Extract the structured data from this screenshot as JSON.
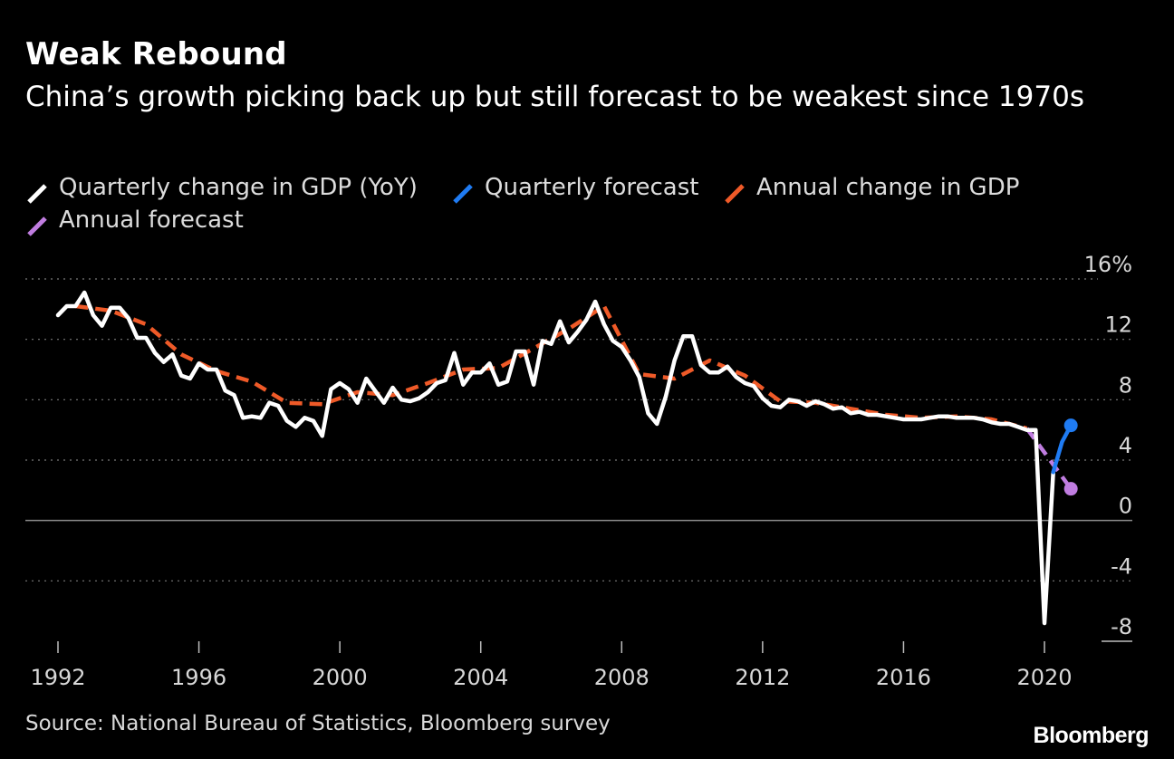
{
  "header": {
    "title": "Weak Rebound",
    "subtitle": "China’s growth picking back up but still forecast to be weakest since 1970s"
  },
  "legend": {
    "items": [
      {
        "label": "Quarterly change in GDP (YoY)",
        "color": "#ffffff"
      },
      {
        "label": "Quarterly forecast",
        "color": "#1f7bf2"
      },
      {
        "label": "Annual change in GDP",
        "color": "#ef5a28"
      },
      {
        "label": "Annual forecast",
        "color": "#c07de0"
      }
    ]
  },
  "footer": {
    "source": "Source: National Bureau of Statistics, Bloomberg survey",
    "brand": "Bloomberg"
  },
  "chart_data": {
    "type": "line",
    "title": "Weak Rebound",
    "subtitle": "China’s growth picking back up but still forecast to be weakest since 1970s",
    "xlabel": "",
    "ylabel": "",
    "xlim": [
      1991.9,
      2021.0
    ],
    "ylim": [
      -8,
      16
    ],
    "y_ticks": [
      16,
      12,
      8,
      4,
      0,
      -4,
      -8
    ],
    "y_tick_labels": [
      "16%",
      "12",
      "8",
      "4",
      "0",
      "-4",
      "-8"
    ],
    "x_ticks": [
      1992,
      1996,
      2000,
      2004,
      2008,
      2012,
      2016,
      2020
    ],
    "x_tick_labels": [
      "1992",
      "1996",
      "2000",
      "2004",
      "2008",
      "2012",
      "2016",
      "2020"
    ],
    "grid": true,
    "legend_position": "top-left",
    "series": [
      {
        "name": "Quarterly change in GDP (YoY)",
        "color": "#ffffff",
        "style": "solid",
        "x": [
          1992.0,
          1992.25,
          1992.5,
          1992.75,
          1993.0,
          1993.25,
          1993.5,
          1993.75,
          1994.0,
          1994.25,
          1994.5,
          1994.75,
          1995.0,
          1995.25,
          1995.5,
          1995.75,
          1996.0,
          1996.25,
          1996.5,
          1996.75,
          1997.0,
          1997.25,
          1997.5,
          1997.75,
          1998.0,
          1998.25,
          1998.5,
          1998.75,
          1999.0,
          1999.25,
          1999.5,
          1999.75,
          2000.0,
          2000.25,
          2000.5,
          2000.75,
          2001.0,
          2001.25,
          2001.5,
          2001.75,
          2002.0,
          2002.25,
          2002.5,
          2002.75,
          2003.0,
          2003.25,
          2003.5,
          2003.75,
          2004.0,
          2004.25,
          2004.5,
          2004.75,
          2005.0,
          2005.25,
          2005.5,
          2005.75,
          2006.0,
          2006.25,
          2006.5,
          2006.75,
          2007.0,
          2007.25,
          2007.5,
          2007.75,
          2008.0,
          2008.25,
          2008.5,
          2008.75,
          2009.0,
          2009.25,
          2009.5,
          2009.75,
          2010.0,
          2010.25,
          2010.5,
          2010.75,
          2011.0,
          2011.25,
          2011.5,
          2011.75,
          2012.0,
          2012.25,
          2012.5,
          2012.75,
          2013.0,
          2013.25,
          2013.5,
          2013.75,
          2014.0,
          2014.25,
          2014.5,
          2014.75,
          2015.0,
          2015.25,
          2015.5,
          2015.75,
          2016.0,
          2016.25,
          2016.5,
          2016.75,
          2017.0,
          2017.25,
          2017.5,
          2017.75,
          2018.0,
          2018.25,
          2018.5,
          2018.75,
          2019.0,
          2019.25,
          2019.5,
          2019.75,
          2020.0,
          2020.25
        ],
        "values": [
          13.6,
          14.2,
          14.2,
          15.1,
          13.6,
          12.9,
          14.1,
          14.1,
          13.4,
          12.1,
          12.1,
          11.1,
          10.5,
          11.0,
          9.6,
          9.4,
          10.4,
          10.0,
          10.0,
          8.6,
          8.3,
          6.8,
          6.9,
          6.8,
          7.8,
          7.6,
          6.6,
          6.2,
          6.8,
          6.6,
          5.6,
          8.7,
          9.1,
          8.7,
          7.8,
          9.4,
          8.6,
          7.8,
          8.8,
          8.0,
          7.9,
          8.1,
          8.5,
          9.1,
          9.3,
          11.1,
          9.0,
          9.8,
          9.8,
          10.4,
          9.0,
          9.2,
          11.2,
          11.2,
          9.0,
          11.9,
          11.7,
          13.2,
          11.8,
          12.5,
          13.3,
          14.5,
          13.0,
          11.9,
          11.5,
          10.6,
          9.5,
          7.1,
          6.4,
          8.2,
          10.6,
          12.2,
          12.2,
          10.3,
          9.8,
          9.8,
          10.2,
          9.5,
          9.1,
          8.9,
          8.1,
          7.6,
          7.5,
          8.0,
          7.9,
          7.6,
          7.9,
          7.7,
          7.4,
          7.5,
          7.1,
          7.2,
          7.0,
          7.0,
          6.9,
          6.8,
          6.7,
          6.7,
          6.7,
          6.8,
          6.9,
          6.9,
          6.8,
          6.8,
          6.8,
          6.7,
          6.5,
          6.4,
          6.4,
          6.2,
          6.0,
          6.0,
          -6.8,
          3.2
        ]
      },
      {
        "name": "Quarterly forecast",
        "color": "#1f7bf2",
        "style": "solid",
        "x": [
          2020.25,
          2020.5,
          2020.75
        ],
        "values": [
          3.2,
          5.2,
          6.3
        ]
      },
      {
        "name": "Annual change in GDP",
        "color": "#ef5a28",
        "style": "dashed",
        "x": [
          1992.5,
          1993.5,
          1994.5,
          1995.5,
          1996.5,
          1997.5,
          1998.5,
          1999.5,
          2000.5,
          2001.5,
          2002.5,
          2003.5,
          2004.5,
          2005.5,
          2006.5,
          2007.5,
          2008.5,
          2009.5,
          2010.5,
          2011.5,
          2012.5,
          2013.5,
          2014.5,
          2015.5,
          2016.5,
          2017.5,
          2018.5,
          2019.5
        ],
        "values": [
          14.2,
          13.9,
          13.0,
          11.0,
          9.9,
          9.2,
          7.8,
          7.7,
          8.5,
          8.3,
          9.1,
          10.0,
          10.1,
          11.4,
          12.7,
          14.2,
          9.7,
          9.4,
          10.6,
          9.6,
          7.9,
          7.8,
          7.4,
          7.0,
          6.8,
          6.9,
          6.7,
          6.1
        ]
      },
      {
        "name": "Annual forecast",
        "color": "#c07de0",
        "style": "dashed",
        "x": [
          2019.5,
          2020.75
        ],
        "values": [
          6.1,
          2.1
        ]
      }
    ]
  }
}
